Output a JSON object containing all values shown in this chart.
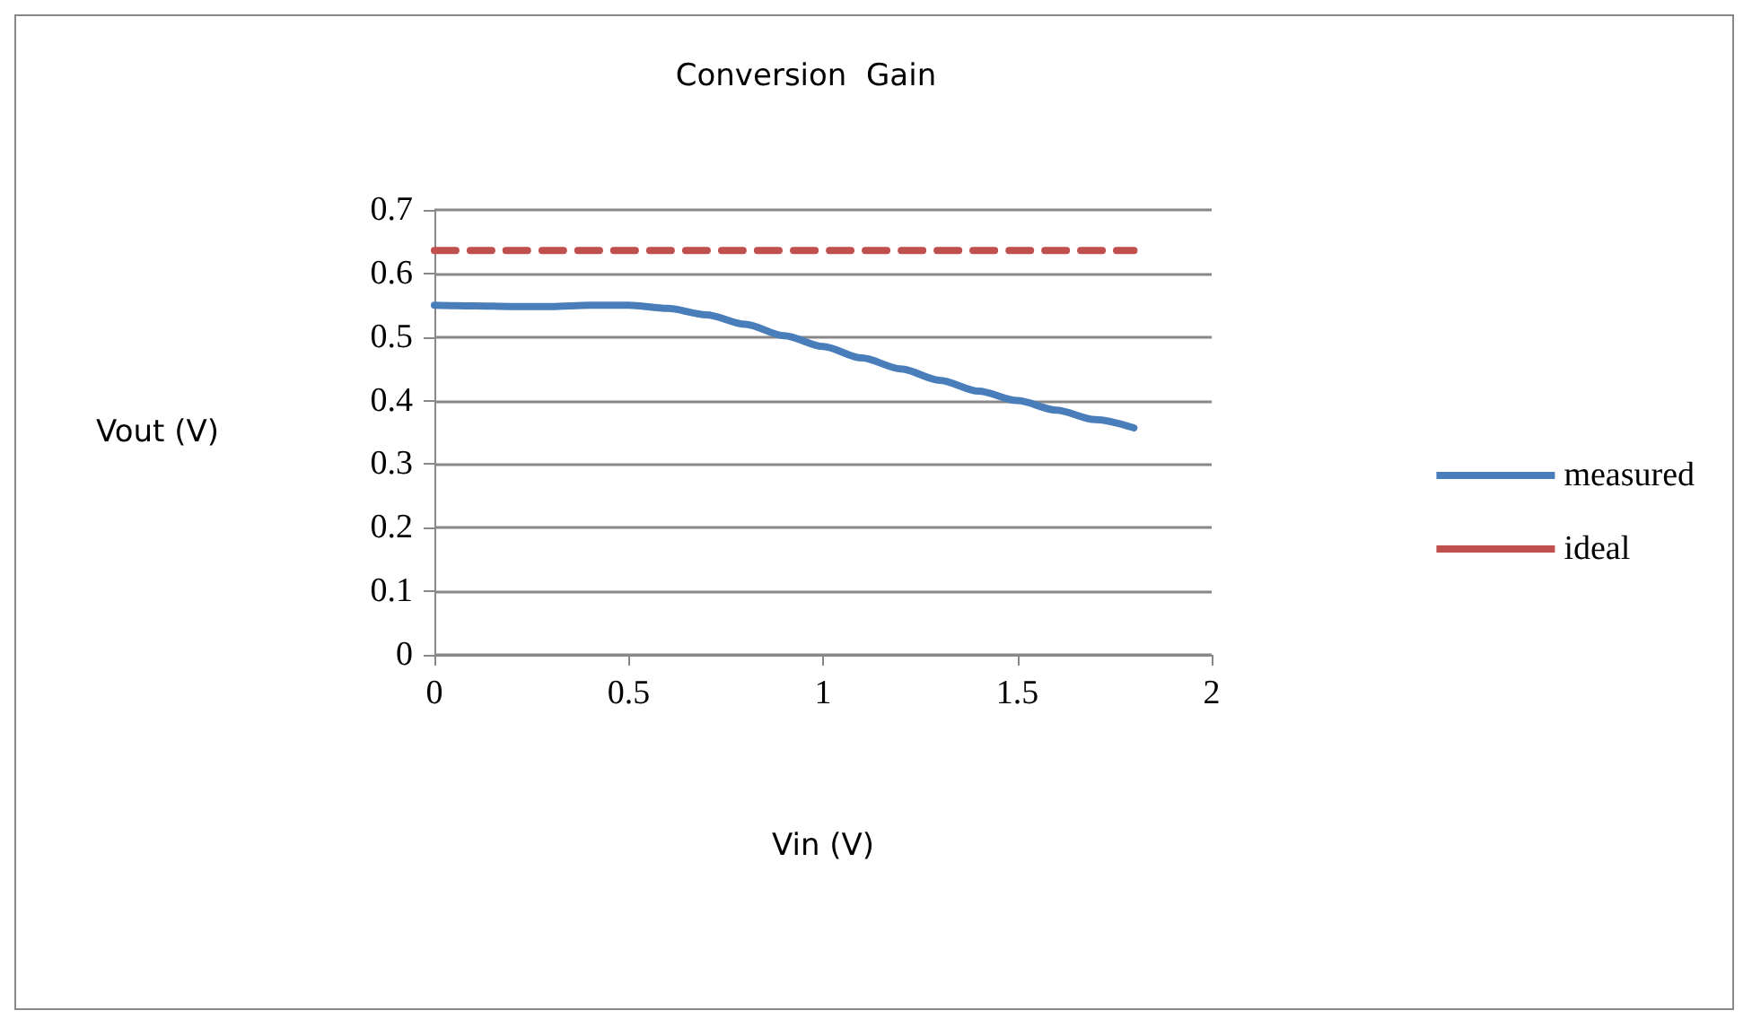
{
  "chart_data": {
    "type": "line",
    "title": "Conversion  Gain",
    "xlabel": "Vin (V)",
    "ylabel": "Vout (V)",
    "xlim": [
      0,
      2
    ],
    "xticks": [
      0,
      0.5,
      1,
      1.5,
      2
    ],
    "ylim": [
      0,
      0.7
    ],
    "yticks": [
      0,
      0.1,
      0.2,
      0.3,
      0.4,
      0.5,
      0.6,
      0.7
    ],
    "grid": "y",
    "legend": "right",
    "marker": "none",
    "series": [
      {
        "name": "measured",
        "color": "#4a7ebb",
        "line_style": "solid",
        "x": [
          0,
          0.1,
          0.2,
          0.3,
          0.4,
          0.5,
          0.6,
          0.7,
          0.8,
          0.9,
          1,
          1.1,
          1.2,
          1.3,
          1.4,
          1.5,
          1.6,
          1.7,
          1.8
        ],
        "values": [
          0.55,
          0.549,
          0.548,
          0.548,
          0.55,
          0.55,
          0.545,
          0.535,
          0.52,
          0.502,
          0.485,
          0.467,
          0.45,
          0.432,
          0.415,
          0.4,
          0.385,
          0.37,
          0.357
        ]
      },
      {
        "name": "ideal",
        "color": "#c0504d",
        "line_style": "dashed",
        "x": [
          0,
          1.8
        ],
        "values": [
          0.636,
          0.636
        ]
      }
    ]
  }
}
